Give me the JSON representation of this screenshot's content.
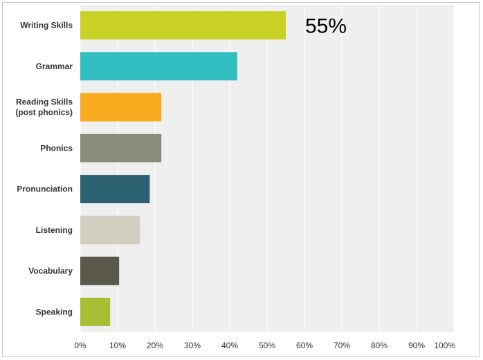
{
  "chart_data": {
    "type": "bar",
    "orientation": "horizontal",
    "categories": [
      [
        "Writing Skills"
      ],
      [
        "Grammar"
      ],
      [
        "Reading Skills",
        "(post phonics)"
      ],
      [
        "Phonics"
      ],
      [
        "Pronunciation"
      ],
      [
        "Listening"
      ],
      [
        "Vocabulary"
      ],
      [
        "Speaking"
      ]
    ],
    "values": [
      55,
      42,
      21.7,
      21.7,
      18.6,
      16,
      10.4,
      8
    ],
    "colors": [
      "#c9d124",
      "#33bfc1",
      "#f8ab1f",
      "#8b8b7a",
      "#2c6271",
      "#d0cfc1",
      "#59584a",
      "#a8be35"
    ],
    "xlim": [
      0,
      100
    ],
    "xticks": [
      "0%",
      "10%",
      "20%",
      "30%",
      "40%",
      "50%",
      "60%",
      "70%",
      "80%",
      "90%",
      "100%"
    ],
    "grid": true,
    "plot_background": "#efefef",
    "callout": {
      "text": "55%",
      "category_index": 0
    }
  }
}
